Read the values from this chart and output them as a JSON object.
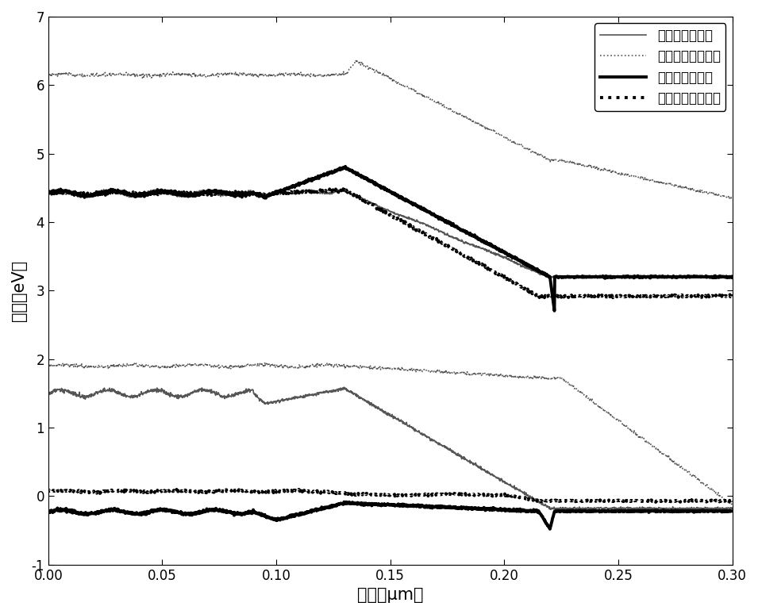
{
  "title": "",
  "xlabel": "位置（μm）",
  "ylabel": "能带（eV）",
  "xlim": [
    0.0,
    0.3
  ],
  "ylim": [
    -1.0,
    7.0
  ],
  "xticks": [
    0.0,
    0.05,
    0.1,
    0.15,
    0.2,
    0.25,
    0.3
  ],
  "yticks": [
    -1,
    0,
    1,
    2,
    3,
    4,
    5,
    6,
    7
  ],
  "legend_labels": [
    "传统结构能带图",
    "传统结构费米能级",
    "专利结构能带图",
    "专利结构费米能级"
  ],
  "background_color": "#ffffff",
  "fontsize_label": 15,
  "fontsize_tick": 12,
  "fontsize_legend": 12,
  "lw_thin": 1.2,
  "lw_thick": 2.8
}
